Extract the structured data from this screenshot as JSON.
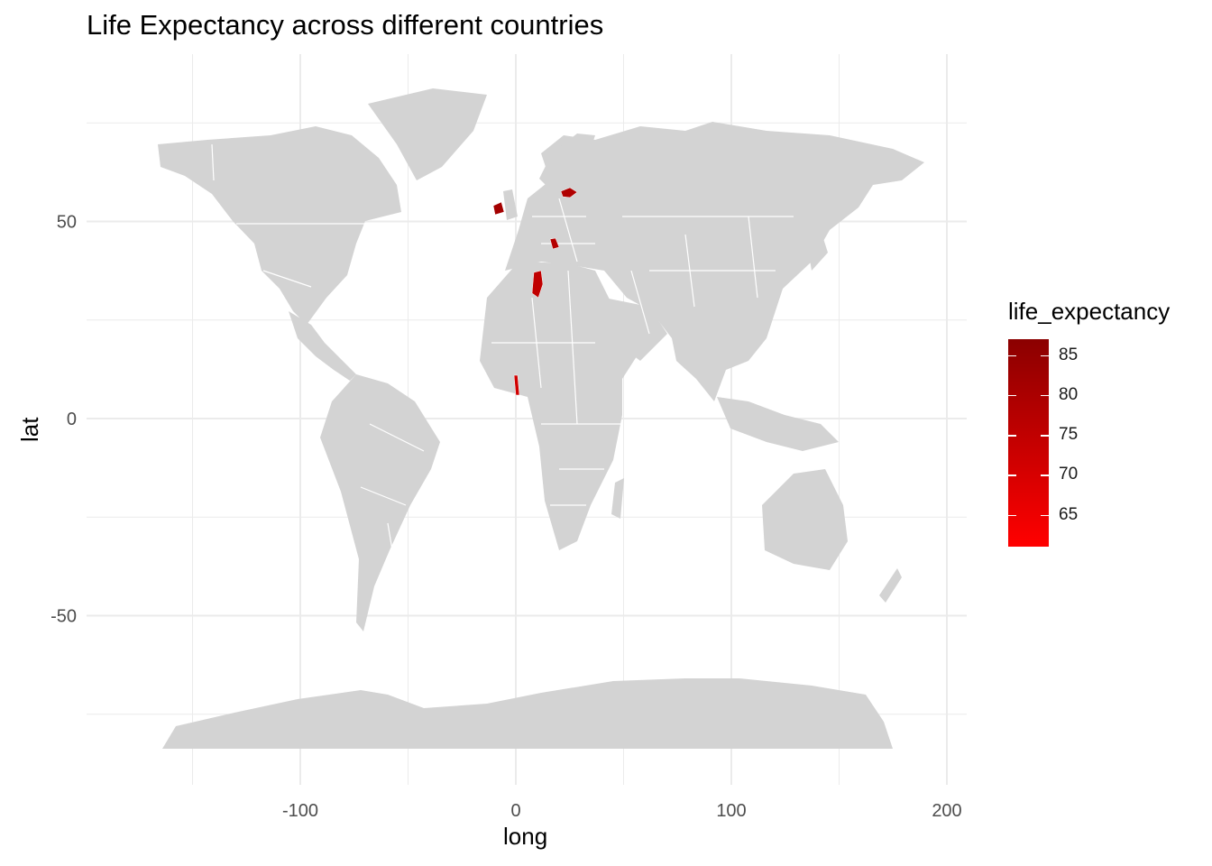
{
  "title": "Life Expectancy across different countries",
  "x_axis": {
    "label": "long",
    "ticks": [
      -100,
      0,
      100,
      200
    ],
    "minor": [
      -150,
      -50,
      50,
      150
    ]
  },
  "y_axis": {
    "label": "lat",
    "ticks": [
      -50,
      0,
      50
    ],
    "minor": [
      -75,
      -25,
      25,
      75
    ]
  },
  "legend": {
    "title": "life_expectancy",
    "labels": [
      "85",
      "80",
      "75",
      "70",
      "65"
    ],
    "values": [
      85,
      80,
      75,
      70,
      65
    ],
    "range": [
      61,
      87
    ],
    "color_low": "#ff0000",
    "color_high": "#8b0000"
  },
  "colors": {
    "land": "#d3d3d3",
    "border": "#ffffff",
    "grid": "#ebebeb"
  },
  "chart_data": {
    "type": "map",
    "title": "Life Expectancy across different countries",
    "xlabel": "long",
    "ylabel": "lat",
    "xlim": [
      -190,
      210
    ],
    "ylim": [
      -90,
      90
    ],
    "grid": true,
    "legend_position": "right",
    "highlighted_regions": [
      "Ireland",
      "Latvia",
      "Serbia",
      "Tunisia",
      "Togo"
    ]
  }
}
